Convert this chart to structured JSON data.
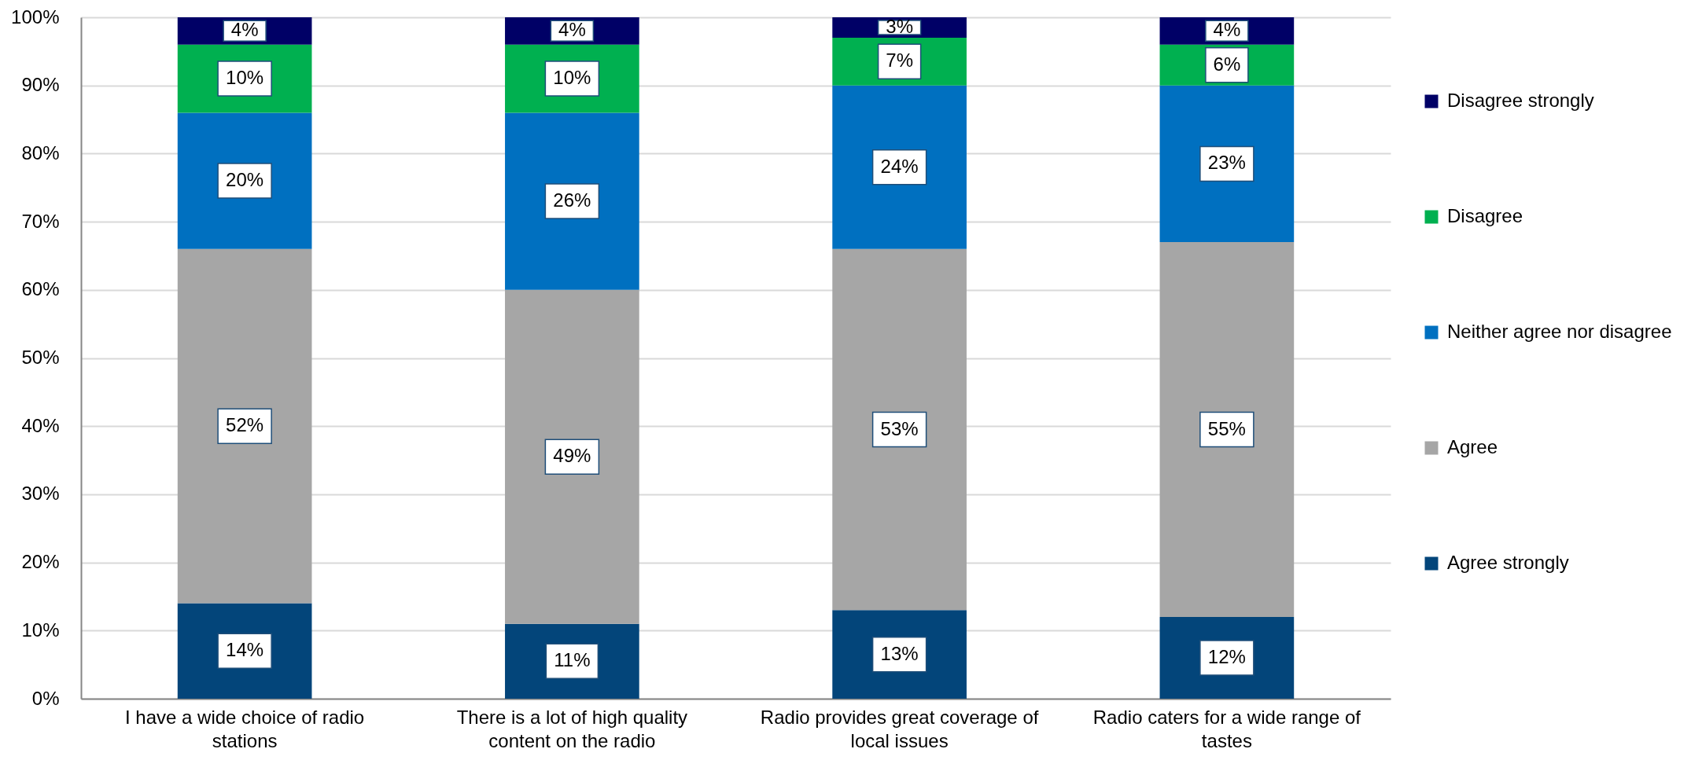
{
  "chart_data": {
    "type": "bar",
    "categories": [
      "I have a wide choice of radio stations",
      "There is a lot of high quality content on the radio",
      "Radio provides great coverage of local issues",
      "Radio caters for a wide range of tastes"
    ],
    "series": [
      {
        "name": "Agree strongly",
        "color": "#03457a",
        "values": [
          14,
          11,
          13,
          12
        ],
        "value_labels": [
          "14%",
          "11%",
          "13%",
          "12%"
        ]
      },
      {
        "name": "Agree",
        "color": "#a6a6a6",
        "values": [
          52,
          49,
          53,
          55
        ],
        "value_labels": [
          "52%",
          "49%",
          "53%",
          "55%"
        ]
      },
      {
        "name": "Neither agree nor disagree",
        "color": "#0070c0",
        "values": [
          20,
          26,
          24,
          23
        ],
        "value_labels": [
          "20%",
          "26%",
          "24%",
          "23%"
        ]
      },
      {
        "name": "Disagree",
        "color": "#00b050",
        "values": [
          10,
          10,
          7,
          6
        ],
        "value_labels": [
          "10%",
          "10%",
          "7%",
          "6%"
        ]
      },
      {
        "name": "Disagree strongly",
        "color": "#000066",
        "values": [
          4,
          4,
          3,
          4
        ],
        "value_labels": [
          "4%",
          "4%",
          "3%",
          "4%"
        ]
      }
    ],
    "stacked": true,
    "ylim": [
      0,
      100
    ],
    "yticks": [
      {
        "value": 0,
        "label": "0%"
      },
      {
        "value": 10,
        "label": "10%"
      },
      {
        "value": 20,
        "label": "20%"
      },
      {
        "value": 30,
        "label": "30%"
      },
      {
        "value": 40,
        "label": "40%"
      },
      {
        "value": 50,
        "label": "50%"
      },
      {
        "value": 60,
        "label": "60%"
      },
      {
        "value": 70,
        "label": "70%"
      },
      {
        "value": 80,
        "label": "80%"
      },
      {
        "value": 90,
        "label": "90%"
      },
      {
        "value": 100,
        "label": "100%"
      }
    ],
    "grid": "y",
    "legend": "right"
  }
}
